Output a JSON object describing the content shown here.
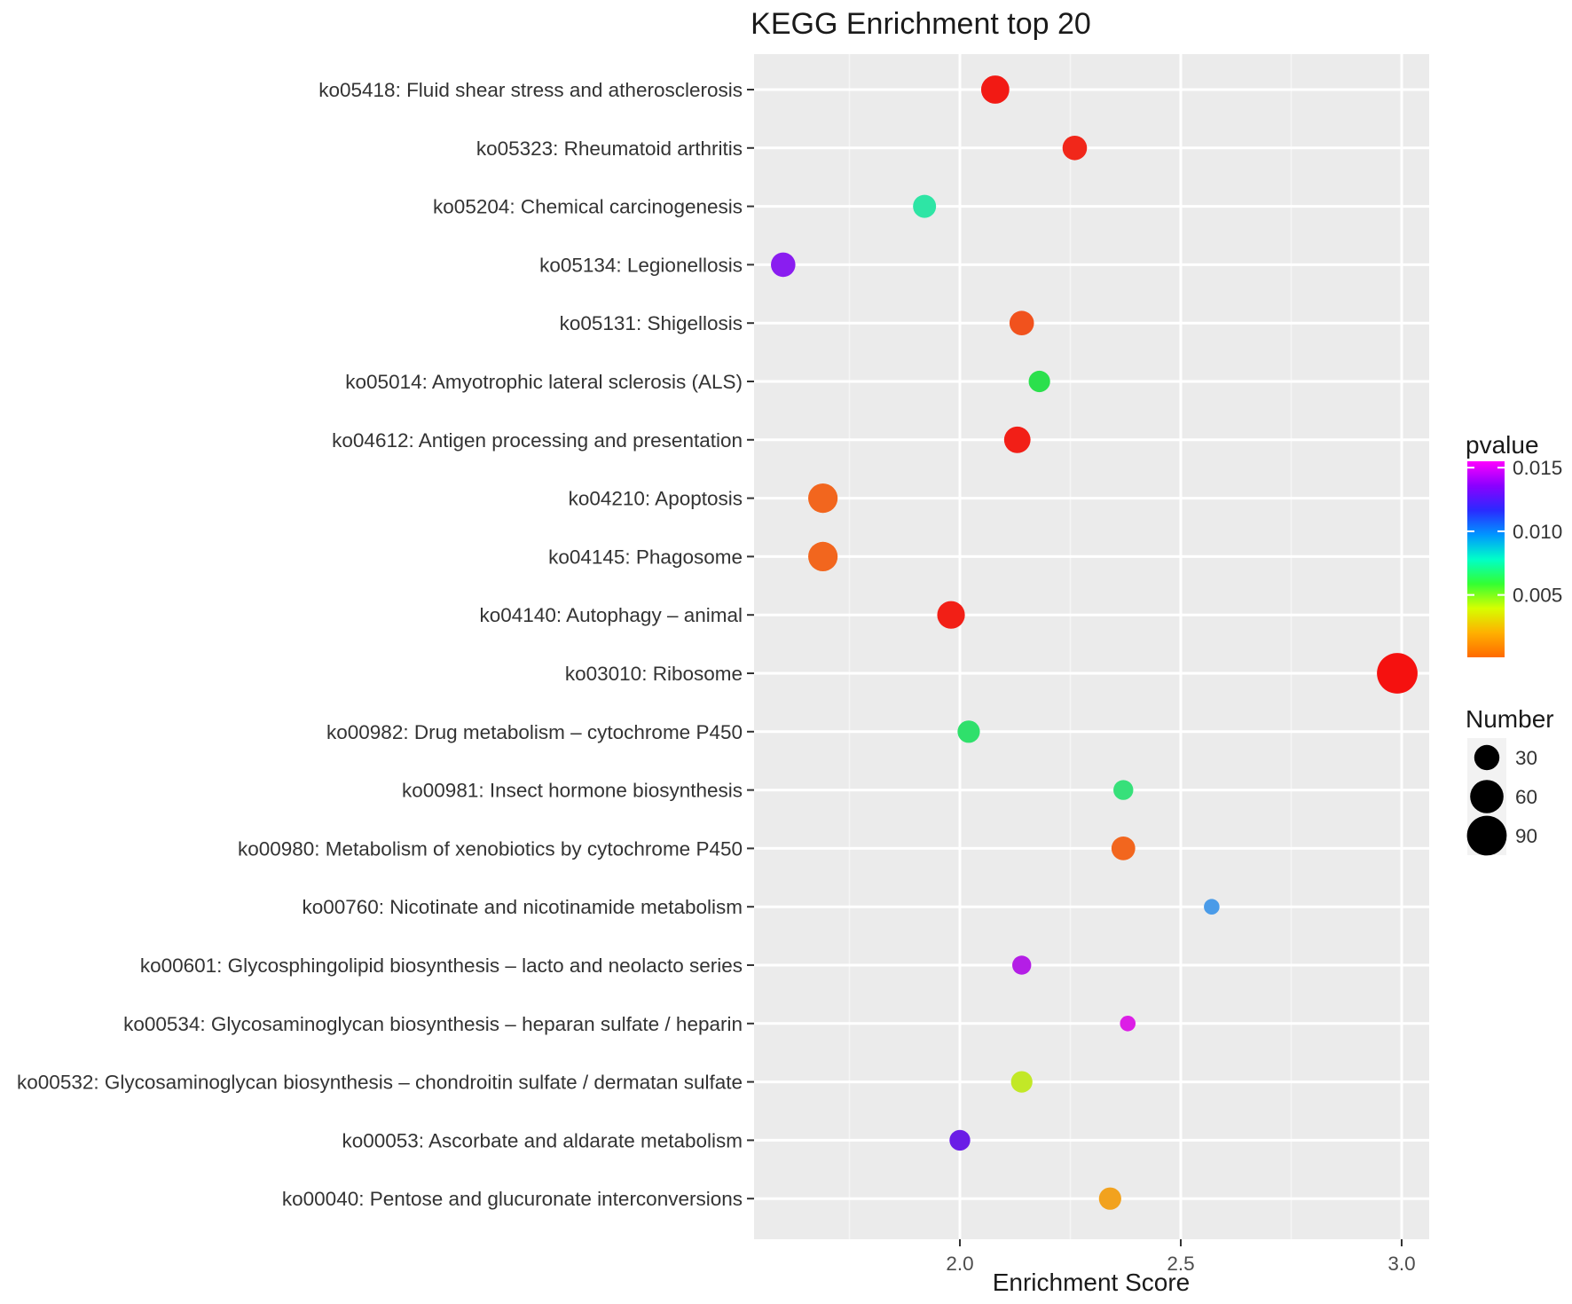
{
  "chart_data": {
    "type": "scatter",
    "title": "KEGG Enrichment top 20",
    "xlabel": "Enrichment Score",
    "ylabel": "",
    "xlim": [
      1.55,
      3.06
    ],
    "x_ticks": [
      2.0,
      2.5,
      3.0
    ],
    "x_tick_labels": [
      "2.0",
      "2.5",
      "3.0"
    ],
    "grid": true,
    "legend_position": "right",
    "points": [
      {
        "pathway": "ko05418: Fluid shear stress and atherosclerosis",
        "score": 2.08,
        "pvalue": 0.0003,
        "number": 40,
        "color": "#f21a14"
      },
      {
        "pathway": "ko05323: Rheumatoid arthritis",
        "score": 2.26,
        "pvalue": 0.0006,
        "number": 28,
        "color": "#f1271a"
      },
      {
        "pathway": "ko05204: Chemical carcinogenesis",
        "score": 1.92,
        "pvalue": 0.0085,
        "number": 24,
        "color": "#2ee5a5"
      },
      {
        "pathway": "ko05134: Legionellosis",
        "score": 1.6,
        "pvalue": 0.0145,
        "number": 28,
        "color": "#8a1df0"
      },
      {
        "pathway": "ko05131: Shigellosis",
        "score": 2.14,
        "pvalue": 0.0012,
        "number": 28,
        "color": "#f1521d"
      },
      {
        "pathway": "ko05014: Amyotrophic lateral sclerosis (ALS)",
        "score": 2.18,
        "pvalue": 0.006,
        "number": 20,
        "color": "#2be04c"
      },
      {
        "pathway": "ko04612: Antigen processing and presentation",
        "score": 2.13,
        "pvalue": 0.0004,
        "number": 34,
        "color": "#f21f17"
      },
      {
        "pathway": "ko04210: Apoptosis",
        "score": 1.69,
        "pvalue": 0.0016,
        "number": 44,
        "color": "#f2661e"
      },
      {
        "pathway": "ko04145: Phagosome",
        "score": 1.69,
        "pvalue": 0.0016,
        "number": 44,
        "color": "#f2661e"
      },
      {
        "pathway": "ko04140: Autophagy – animal",
        "score": 1.98,
        "pvalue": 0.0004,
        "number": 38,
        "color": "#f21f16"
      },
      {
        "pathway": "ko03010: Ribosome",
        "score": 2.99,
        "pvalue": 0.0001,
        "number": 95,
        "color": "#f5110f"
      },
      {
        "pathway": "ko00982: Drug metabolism – cytochrome P450",
        "score": 2.02,
        "pvalue": 0.0068,
        "number": 22,
        "color": "#2fe06b"
      },
      {
        "pathway": "ko00981: Insect hormone biosynthesis",
        "score": 2.37,
        "pvalue": 0.0068,
        "number": 16,
        "color": "#37e07a"
      },
      {
        "pathway": "ko00980: Metabolism of xenobiotics by cytochrome P450",
        "score": 2.37,
        "pvalue": 0.0014,
        "number": 26,
        "color": "#f2661e"
      },
      {
        "pathway": "ko00760: Nicotinate and nicotinamide metabolism",
        "score": 2.57,
        "pvalue": 0.0102,
        "number": 8,
        "color": "#4a9be8"
      },
      {
        "pathway": "ko00601: Glycosphingolipid biosynthesis – lacto and neolacto series",
        "score": 2.14,
        "pvalue": 0.0148,
        "number": 14,
        "color": "#b41ee6"
      },
      {
        "pathway": "ko00534: Glycosaminoglycan biosynthesis – heparan sulfate / heparin",
        "score": 2.38,
        "pvalue": 0.0152,
        "number": 8,
        "color": "#dc1ee6"
      },
      {
        "pathway": "ko00532: Glycosaminoglycan biosynthesis – chondroitin sulfate / dermatan sulfate",
        "score": 2.14,
        "pvalue": 0.004,
        "number": 20,
        "color": "#c2e827"
      },
      {
        "pathway": "ko00053: Ascorbate and aldarate metabolism",
        "score": 2.0,
        "pvalue": 0.014,
        "number": 18,
        "color": "#6a1de6"
      },
      {
        "pathway": "ko00040: Pentose and glucuronate interconversions",
        "score": 2.34,
        "pvalue": 0.0022,
        "number": 22,
        "color": "#f2a21e"
      }
    ],
    "color_legend": {
      "title": "pvalue",
      "ticks": [
        0.015,
        0.01,
        0.005
      ],
      "tick_labels": [
        "0.015",
        "0.010",
        "0.005"
      ],
      "range": [
        0.0001,
        0.0155
      ],
      "gradient_colors_low_to_high": [
        "#ff6a00",
        "#ffb000",
        "#d6ff00",
        "#33ff33",
        "#00ffc8",
        "#0096ff",
        "#2a2aff",
        "#8a00ff",
        "#ff00ff"
      ]
    },
    "size_legend": {
      "title": "Number",
      "entries": [
        30,
        60,
        90
      ],
      "entry_labels": [
        "30",
        "60",
        "90"
      ]
    }
  }
}
